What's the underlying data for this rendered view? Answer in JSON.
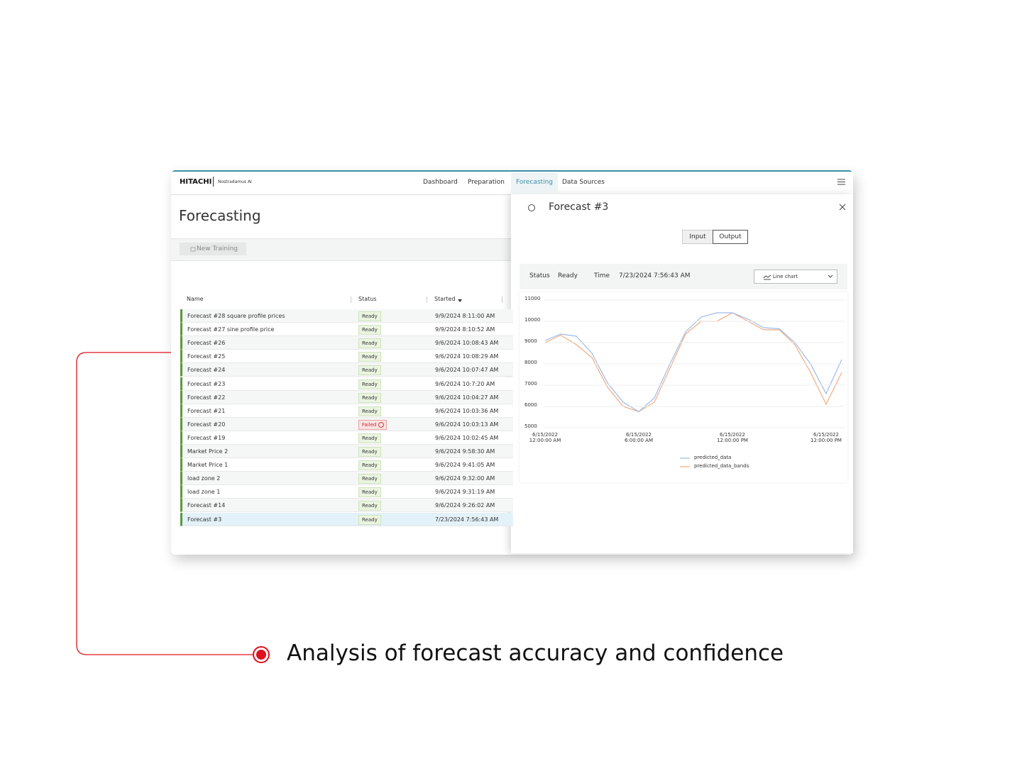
{
  "nav": {
    "brand": "HITACHI",
    "product": "Nostradamus AI",
    "tabs": [
      "Dashboard",
      "Preparation",
      "Forecasting",
      "Data Sources"
    ]
  },
  "page": {
    "title": "Forecasting",
    "button": "New Training"
  },
  "table": {
    "headers": [
      "Name",
      "Status",
      "Started"
    ],
    "rows": [
      [
        "Forecast #28 square profile prices",
        "Ready",
        "9/9/2024 8:11:00 AM"
      ],
      [
        "Forecast #27 sine profile price",
        "Ready",
        "9/9/2024 8:10:52 AM"
      ],
      [
        "Forecast #26",
        "Ready",
        "9/6/2024 10:08:43 AM"
      ],
      [
        "Forecast #25",
        "Ready",
        "9/6/2024 10:08:29 AM"
      ],
      [
        "Forecast #24",
        "Ready",
        "9/6/2024 10:07:47 AM"
      ],
      [
        "Forecast #23",
        "Ready",
        "9/6/2024 10:7:20 AM"
      ],
      [
        "Forecast #22",
        "Ready",
        "9/6/2024 10:04:27 AM"
      ],
      [
        "Forecast #21",
        "Ready",
        "9/6/2024 10:03:36 AM"
      ],
      [
        "Forecast #20",
        "Failed",
        "9/6/2024 10:03:13 AM"
      ],
      [
        "Forecast #19",
        "Ready",
        "9/6/2024 10:02:45 AM"
      ],
      [
        "Market Price 2",
        "Ready",
        "9/6/2024 9:58:30 AM"
      ],
      [
        "Market Price 1",
        "Ready",
        "9/6/2024 9:41:05 AM"
      ],
      [
        "load zone 2",
        "Ready",
        "9/6/2024 9:32:00 AM"
      ],
      [
        "load zone 1",
        "Ready",
        "9/6/2024 9:31:19 AM"
      ],
      [
        "Forecast #14",
        "Ready",
        "9/6/2024 9:26:02 AM"
      ],
      [
        "Forecast #3",
        "Ready",
        "7/23/2024 7:56:43 AM"
      ]
    ]
  },
  "panel": {
    "title": "Forecast #3",
    "tabs": [
      "Input",
      "Output"
    ],
    "status_label": "Status",
    "status": "Ready",
    "time_label": "Time",
    "time": "7/23/2024 7:56:43 AM",
    "view": "Line chart"
  },
  "chart_data": {
    "type": "line",
    "categories": [
      "6/15/2022 12:00:00 AM",
      null,
      null,
      null,
      null,
      null,
      "6/15/2022 6:00:00 AM",
      null,
      null,
      null,
      null,
      null,
      "6/15/2022 12:00:00 PM",
      null,
      null,
      null,
      null,
      null,
      "6/15/2022 12:00:00 PM",
      null
    ],
    "series": [
      {
        "name": "predicted_data",
        "color": "#9dbbe9",
        "values": [
          9100,
          9400,
          9300,
          8500,
          7100,
          6200,
          5750,
          6400,
          8000,
          9500,
          10200,
          10400,
          10400,
          10100,
          9700,
          9650,
          9000,
          8000,
          6600,
          8200
        ]
      },
      {
        "name": "predicted_data_bands",
        "color": "#f2ab80",
        "values": [
          9000,
          9350,
          8900,
          8300,
          6900,
          6000,
          5750,
          6200,
          7800,
          9400,
          10000,
          10000,
          10400,
          10000,
          9600,
          9600,
          8900,
          7600,
          6100,
          7600
        ]
      }
    ],
    "ylim": [
      5000,
      11000
    ],
    "yticks": [
      5000,
      6000,
      7000,
      8000,
      9000,
      10000,
      11000
    ],
    "grid": true
  },
  "caption": "Analysis of forecast accuracy and confidence"
}
